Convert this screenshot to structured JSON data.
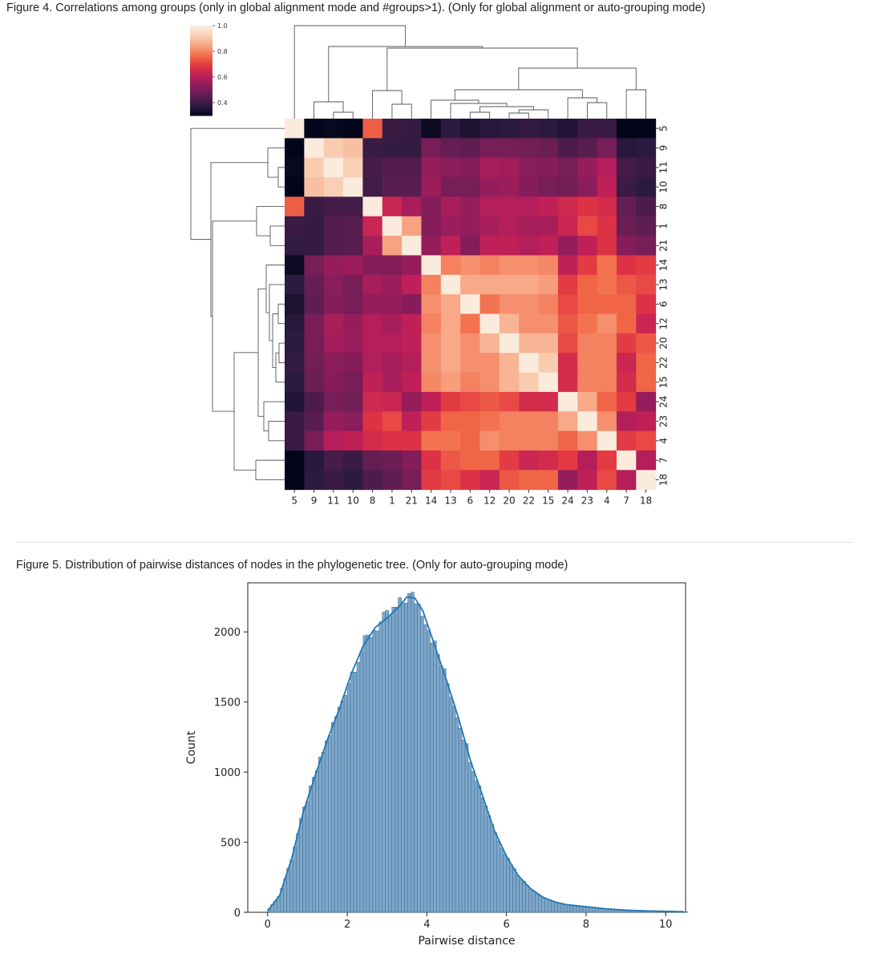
{
  "figure4": {
    "caption": "Figure 4. Correlations among groups (only in global alignment mode and #groups>1). (Only for global alignment or auto-grouping mode)"
  },
  "figure5": {
    "caption": "Figure 5. Distribution of pairwise distances of nodes in the phylogenetic tree. (Only for auto-grouping mode)"
  },
  "colors": {
    "colormap": [
      "#03051a",
      "#2c1a3f",
      "#5c1e51",
      "#8c1d5b",
      "#bb1e5a",
      "#e13342",
      "#f26a48",
      "#f6a07e",
      "#f9cdb1",
      "#faebdd"
    ],
    "hist_fill": "#7ea7c9",
    "hist_edge": "#3a6791",
    "kde_line": "#1f77b4"
  },
  "chart_data": [
    {
      "type": "heatmap",
      "labels": [
        "5",
        "9",
        "11",
        "10",
        "8",
        "1",
        "21",
        "14",
        "13",
        "6",
        "12",
        "20",
        "22",
        "15",
        "24",
        "23",
        "4",
        "7",
        "18"
      ],
      "colorbar": {
        "min": 0.3,
        "max": 1.0,
        "ticks": [
          "1.0",
          "0.8",
          "0.6",
          "0.4"
        ]
      },
      "matrix": [
        [
          1.0,
          0.3,
          0.31,
          0.29,
          0.75,
          0.4,
          0.39,
          0.32,
          0.38,
          0.35,
          0.37,
          0.38,
          0.39,
          0.38,
          0.36,
          0.4,
          0.4,
          0.29,
          0.3
        ],
        [
          0.3,
          1.0,
          0.92,
          0.9,
          0.4,
          0.39,
          0.39,
          0.5,
          0.47,
          0.46,
          0.5,
          0.5,
          0.49,
          0.48,
          0.43,
          0.45,
          0.5,
          0.37,
          0.38
        ],
        [
          0.31,
          0.92,
          1.0,
          0.93,
          0.42,
          0.44,
          0.44,
          0.55,
          0.53,
          0.52,
          0.58,
          0.57,
          0.53,
          0.52,
          0.5,
          0.55,
          0.6,
          0.42,
          0.4
        ],
        [
          0.29,
          0.9,
          0.93,
          1.0,
          0.41,
          0.45,
          0.45,
          0.56,
          0.5,
          0.5,
          0.55,
          0.56,
          0.52,
          0.5,
          0.49,
          0.53,
          0.62,
          0.4,
          0.38
        ],
        [
          0.75,
          0.4,
          0.42,
          0.41,
          1.0,
          0.64,
          0.58,
          0.52,
          0.58,
          0.55,
          0.6,
          0.6,
          0.6,
          0.62,
          0.65,
          0.68,
          0.66,
          0.47,
          0.43
        ],
        [
          0.4,
          0.39,
          0.44,
          0.45,
          0.64,
          1.0,
          0.85,
          0.52,
          0.56,
          0.55,
          0.58,
          0.6,
          0.58,
          0.58,
          0.64,
          0.72,
          0.68,
          0.48,
          0.46
        ],
        [
          0.39,
          0.39,
          0.44,
          0.45,
          0.58,
          0.85,
          1.0,
          0.55,
          0.62,
          0.52,
          0.62,
          0.62,
          0.6,
          0.62,
          0.55,
          0.62,
          0.68,
          0.52,
          0.5
        ],
        [
          0.32,
          0.5,
          0.55,
          0.56,
          0.52,
          0.52,
          0.55,
          1.0,
          0.8,
          0.82,
          0.8,
          0.82,
          0.82,
          0.81,
          0.62,
          0.7,
          0.78,
          0.68,
          0.7
        ],
        [
          0.38,
          0.47,
          0.53,
          0.5,
          0.58,
          0.56,
          0.62,
          0.8,
          1.0,
          0.86,
          0.86,
          0.86,
          0.86,
          0.84,
          0.7,
          0.76,
          0.78,
          0.74,
          0.72
        ],
        [
          0.35,
          0.46,
          0.52,
          0.5,
          0.55,
          0.55,
          0.52,
          0.82,
          0.86,
          1.0,
          0.78,
          0.82,
          0.82,
          0.8,
          0.72,
          0.76,
          0.76,
          0.76,
          0.68
        ],
        [
          0.37,
          0.5,
          0.58,
          0.55,
          0.6,
          0.58,
          0.62,
          0.8,
          0.86,
          0.78,
          1.0,
          0.88,
          0.82,
          0.82,
          0.74,
          0.78,
          0.82,
          0.76,
          0.64
        ],
        [
          0.38,
          0.5,
          0.57,
          0.56,
          0.6,
          0.6,
          0.62,
          0.82,
          0.86,
          0.82,
          0.88,
          1.0,
          0.88,
          0.88,
          0.72,
          0.8,
          0.8,
          0.7,
          0.74
        ],
        [
          0.39,
          0.49,
          0.53,
          0.52,
          0.6,
          0.58,
          0.6,
          0.82,
          0.86,
          0.82,
          0.82,
          0.88,
          1.0,
          0.92,
          0.66,
          0.8,
          0.8,
          0.64,
          0.76
        ],
        [
          0.38,
          0.48,
          0.52,
          0.5,
          0.62,
          0.58,
          0.62,
          0.81,
          0.84,
          0.8,
          0.82,
          0.88,
          0.92,
          1.0,
          0.66,
          0.8,
          0.8,
          0.66,
          0.76
        ],
        [
          0.36,
          0.43,
          0.5,
          0.49,
          0.65,
          0.64,
          0.55,
          0.62,
          0.7,
          0.72,
          0.74,
          0.72,
          0.66,
          0.66,
          1.0,
          0.86,
          0.76,
          0.7,
          0.55
        ],
        [
          0.4,
          0.45,
          0.55,
          0.53,
          0.68,
          0.72,
          0.62,
          0.7,
          0.76,
          0.76,
          0.78,
          0.8,
          0.8,
          0.8,
          0.86,
          1.0,
          0.82,
          0.6,
          0.62
        ],
        [
          0.4,
          0.5,
          0.6,
          0.62,
          0.66,
          0.68,
          0.68,
          0.78,
          0.78,
          0.76,
          0.82,
          0.8,
          0.8,
          0.8,
          0.76,
          0.82,
          1.0,
          0.7,
          0.72
        ],
        [
          0.29,
          0.37,
          0.42,
          0.4,
          0.47,
          0.48,
          0.52,
          0.68,
          0.74,
          0.76,
          0.76,
          0.7,
          0.64,
          0.66,
          0.7,
          0.6,
          0.7,
          1.0,
          0.6
        ],
        [
          0.3,
          0.38,
          0.4,
          0.38,
          0.43,
          0.46,
          0.5,
          0.7,
          0.72,
          0.68,
          0.64,
          0.74,
          0.76,
          0.76,
          0.55,
          0.62,
          0.72,
          0.6,
          1.0
        ]
      ]
    },
    {
      "type": "histogram",
      "xlabel": "Pairwise distance",
      "ylabel": "Count",
      "xlim": [
        -0.5,
        10.5
      ],
      "ylim": [
        0,
        2350
      ],
      "xticks": [
        0,
        2,
        4,
        6,
        8,
        10
      ],
      "yticks": [
        0,
        500,
        1000,
        1500,
        2000
      ],
      "bin_width": 0.08,
      "x_start": 0.0,
      "x_end": 10.5,
      "density": [
        [
          0.0,
          10
        ],
        [
          0.3,
          120
        ],
        [
          0.6,
          380
        ],
        [
          0.9,
          720
        ],
        [
          1.2,
          980
        ],
        [
          1.5,
          1230
        ],
        [
          1.8,
          1450
        ],
        [
          2.1,
          1700
        ],
        [
          2.4,
          1900
        ],
        [
          2.7,
          2030
        ],
        [
          3.0,
          2100
        ],
        [
          3.3,
          2180
        ],
        [
          3.5,
          2250
        ],
        [
          3.7,
          2240
        ],
        [
          3.9,
          2150
        ],
        [
          4.2,
          1900
        ],
        [
          4.5,
          1650
        ],
        [
          4.8,
          1380
        ],
        [
          5.1,
          1080
        ],
        [
          5.4,
          830
        ],
        [
          5.7,
          580
        ],
        [
          6.0,
          400
        ],
        [
          6.3,
          260
        ],
        [
          6.6,
          170
        ],
        [
          6.9,
          110
        ],
        [
          7.2,
          75
        ],
        [
          7.5,
          55
        ],
        [
          8.0,
          40
        ],
        [
          8.5,
          25
        ],
        [
          9.0,
          15
        ],
        [
          9.5,
          10
        ],
        [
          10.0,
          7
        ],
        [
          10.5,
          4
        ]
      ]
    }
  ]
}
